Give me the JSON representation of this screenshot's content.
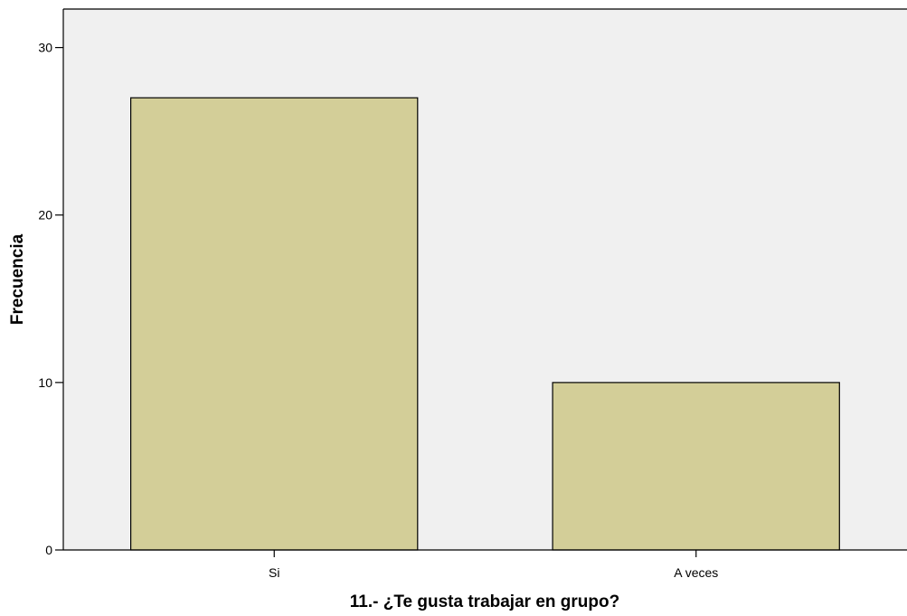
{
  "chart_data": {
    "type": "bar",
    "title": "",
    "xlabel": "11.- ¿Te gusta trabajar en grupo?",
    "ylabel": "Frecuencia",
    "categories": [
      "Si",
      "A veces"
    ],
    "values": [
      27,
      10
    ],
    "ylim": [
      0,
      32.3
    ],
    "yticks": [
      0,
      10,
      20,
      30
    ],
    "grid": false,
    "legend": "none",
    "colors": {
      "bar_fill": "#d3ce98",
      "bar_stroke": "#000000",
      "plot_background": "#f0f0f0",
      "page_background": "#ffffff"
    }
  }
}
